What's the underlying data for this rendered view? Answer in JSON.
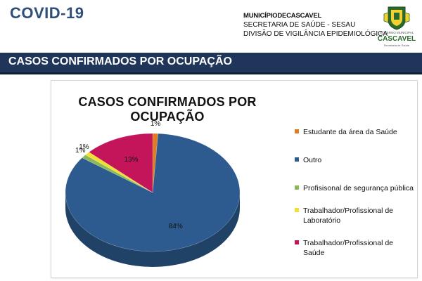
{
  "header": {
    "title": "COVID-19",
    "municipality": "MUNICÍPIODECASCAVEL",
    "secretariat": "SECRETARIA DE SAÚDE - SESAU",
    "division": "DIVISÃO DE VIGILÂNCIA EPIDEMIOLÓGICA",
    "logo": {
      "small_text": "GOVERNO MUNICIPAL",
      "name": "CASCAVEL",
      "sub_text": "Secretaria de Saúde"
    }
  },
  "banner": {
    "title": "CASOS CONFIRMADOS POR OCUPAÇÃO"
  },
  "chart_data": {
    "type": "pie",
    "title": "CASOS CONFIRMADOS POR OCUPAÇÃO",
    "legend_position": "right",
    "slices": [
      {
        "label": "Estudante da área da Saúde",
        "value": 1,
        "display": "1%",
        "color": "#e07b22"
      },
      {
        "label": "Outro",
        "value": 84,
        "display": "84%",
        "color": "#2e5b8f"
      },
      {
        "label": "Profisisonal de segurança pública",
        "value": 1,
        "display": "1%",
        "color": "#8ab85a"
      },
      {
        "label": "Trabalhador/Profissional de Laboratório",
        "value": 1,
        "display": "1%",
        "color": "#f0e030"
      },
      {
        "label": "Trabalhador/Profissional de Saúde",
        "value": 13,
        "display": "13%",
        "color": "#c4145a"
      }
    ]
  }
}
